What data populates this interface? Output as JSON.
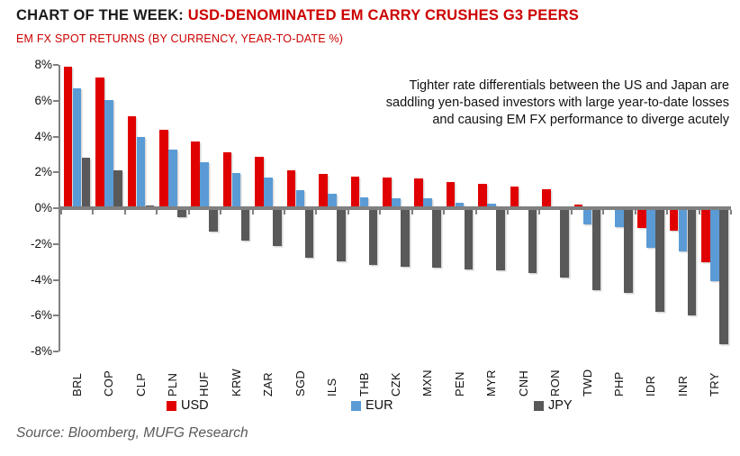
{
  "header": {
    "title_prefix": "CHART OF THE WEEK: ",
    "title_highlight": "USD-DENOMINATED EM CARRY CRUSHES G3 PEERS",
    "subtitle": "EM FX SPOT RETURNS (BY CURRENCY, YEAR-TO-DATE %)"
  },
  "annotation": "Tighter rate differentials between the US and Japan are saddling yen-based investors with large year-to-date losses and causing EM FX performance to diverge acutely",
  "source": "Source: Bloomberg, MUFG Research",
  "colors": {
    "title_accent": "#cc0000",
    "axis_gray": "#808080",
    "usd_red": "#e00000",
    "eur_blue": "#5b9bd5",
    "jpy_gray": "#595959"
  },
  "chart_data": {
    "type": "bar",
    "title": "EM FX SPOT RETURNS (BY CURRENCY, YEAR-TO-DATE %)",
    "categories": [
      "BRL",
      "COP",
      "CLP",
      "PLN",
      "HUF",
      "KRW",
      "ZAR",
      "SGD",
      "ILS",
      "THB",
      "CZK",
      "MXN",
      "PEN",
      "MYR",
      "CNH",
      "RON",
      "TWD",
      "PHP",
      "IDR",
      "INR",
      "TRY"
    ],
    "series": [
      {
        "name": "USD",
        "color": "#e00000",
        "values": [
          7.9,
          7.3,
          5.15,
          4.4,
          3.7,
          3.1,
          2.85,
          2.1,
          1.9,
          1.75,
          1.7,
          1.65,
          1.45,
          1.35,
          1.2,
          1.05,
          0.2,
          0.1,
          -1.1,
          -1.25,
          -3.0
        ]
      },
      {
        "name": "EUR",
        "color": "#5b9bd5",
        "values": [
          6.7,
          6.05,
          3.95,
          3.25,
          2.55,
          1.95,
          1.7,
          1.0,
          0.8,
          0.6,
          0.55,
          0.55,
          0.3,
          0.25,
          0.1,
          0.0,
          -0.9,
          -1.05,
          -2.2,
          -2.4,
          -4.1
        ]
      },
      {
        "name": "JPY",
        "color": "#595959",
        "values": [
          2.8,
          2.1,
          0.15,
          -0.5,
          -1.3,
          -1.8,
          -2.1,
          -2.75,
          -2.95,
          -3.15,
          -3.25,
          -3.3,
          -3.4,
          -3.45,
          -3.6,
          -3.85,
          -4.6,
          -4.75,
          -5.8,
          -6.0,
          -7.6
        ]
      }
    ],
    "ylim": [
      -8,
      8
    ],
    "ytick_step": 2,
    "ytick_labels": [
      "8%",
      "6%",
      "4%",
      "2%",
      "0%",
      "-2%",
      "-4%",
      "-6%",
      "-8%"
    ],
    "xlabel": "",
    "ylabel": "",
    "grid": false,
    "legend_position": "bottom"
  }
}
